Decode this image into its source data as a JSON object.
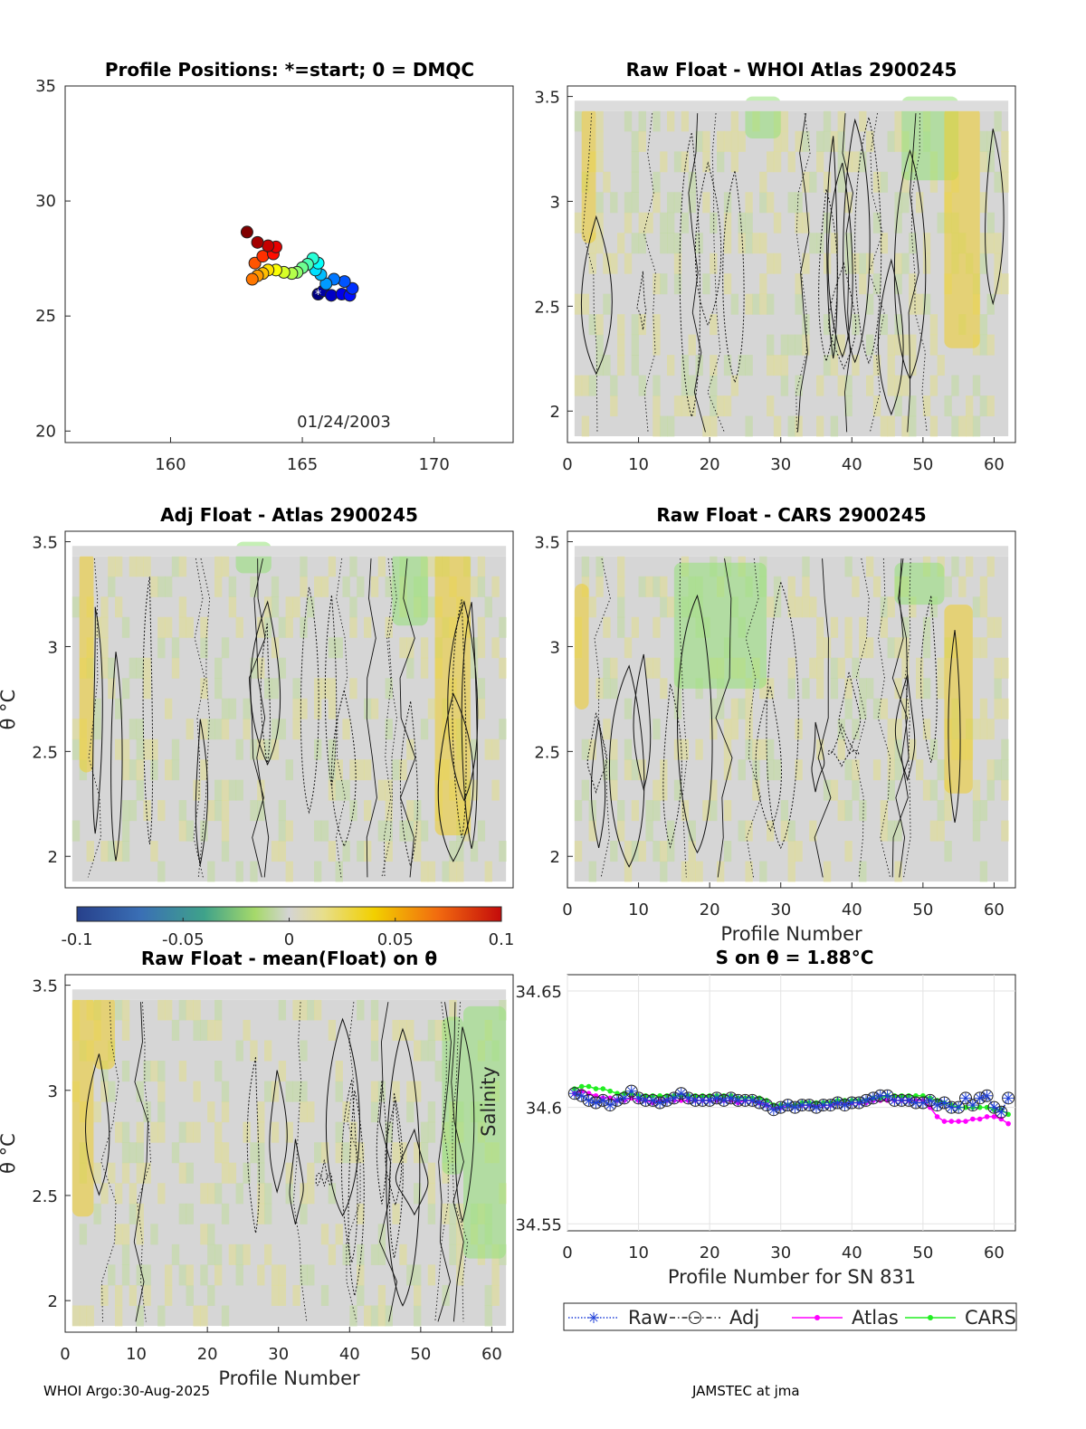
{
  "chart_data": [
    {
      "id": "positions",
      "type": "scatter",
      "title": "Profile Positions: *=start; 0 = DMQC",
      "xlim": [
        156,
        173
      ],
      "ylim": [
        19.5,
        35
      ],
      "xticks": [
        160,
        165,
        170
      ],
      "yticks": [
        20,
        25,
        30,
        35
      ],
      "annotation": "01/24/2003",
      "points": [
        {
          "lon": 165.6,
          "lat": 25.95
        },
        {
          "lon": 165.8,
          "lat": 26.1
        },
        {
          "lon": 166.1,
          "lat": 25.9
        },
        {
          "lon": 166.5,
          "lat": 25.95
        },
        {
          "lon": 166.8,
          "lat": 25.9
        },
        {
          "lon": 166.9,
          "lat": 26.2
        },
        {
          "lon": 166.6,
          "lat": 26.5
        },
        {
          "lon": 166.2,
          "lat": 26.6
        },
        {
          "lon": 165.9,
          "lat": 26.4
        },
        {
          "lon": 165.7,
          "lat": 26.8
        },
        {
          "lon": 165.5,
          "lat": 27.0
        },
        {
          "lon": 165.6,
          "lat": 27.3
        },
        {
          "lon": 165.4,
          "lat": 27.5
        },
        {
          "lon": 165.2,
          "lat": 27.25
        },
        {
          "lon": 165.0,
          "lat": 27.1
        },
        {
          "lon": 164.8,
          "lat": 26.9
        },
        {
          "lon": 164.6,
          "lat": 26.85
        },
        {
          "lon": 164.3,
          "lat": 26.9
        },
        {
          "lon": 164.0,
          "lat": 27.0
        },
        {
          "lon": 163.7,
          "lat": 27.0
        },
        {
          "lon": 163.5,
          "lat": 26.85
        },
        {
          "lon": 163.3,
          "lat": 26.75
        },
        {
          "lon": 163.1,
          "lat": 26.6
        },
        {
          "lon": 163.2,
          "lat": 27.3
        },
        {
          "lon": 163.5,
          "lat": 27.6
        },
        {
          "lon": 163.9,
          "lat": 27.7
        },
        {
          "lon": 164.0,
          "lat": 28.0
        },
        {
          "lon": 163.7,
          "lat": 28.05
        },
        {
          "lon": 163.3,
          "lat": 28.2
        },
        {
          "lon": 162.9,
          "lat": 28.65
        }
      ]
    },
    {
      "id": "raw-whoi",
      "type": "heatmap",
      "title": "Raw Float - WHOI Atlas  2900245",
      "xlim": [
        0,
        63
      ],
      "ylim": [
        1.85,
        3.55
      ],
      "xticks": [
        0,
        10,
        20,
        30,
        40,
        50,
        60
      ],
      "yticks": [
        2,
        2.5,
        3,
        3.5
      ],
      "xlabel": "",
      "ylabel": ""
    },
    {
      "id": "adj-atlas",
      "type": "heatmap",
      "title": "Adj Float - Atlas  2900245",
      "xlim": [
        0,
        63
      ],
      "ylim": [
        1.85,
        3.55
      ],
      "yticks": [
        2,
        2.5,
        3,
        3.5
      ],
      "ylabel": "θ °C"
    },
    {
      "id": "raw-cars",
      "type": "heatmap",
      "title": "Raw Float - CARS  2900245",
      "xlim": [
        0,
        63
      ],
      "ylim": [
        1.85,
        3.55
      ],
      "xticks": [
        0,
        10,
        20,
        30,
        40,
        50,
        60
      ],
      "yticks": [
        2,
        2.5,
        3,
        3.5
      ],
      "xlabel": "Profile Number"
    },
    {
      "id": "raw-mean",
      "type": "heatmap",
      "title": "Raw Float - mean(Float) on θ",
      "xlim": [
        0,
        63
      ],
      "ylim": [
        1.85,
        3.55
      ],
      "xticks": [
        0,
        10,
        20,
        30,
        40,
        50,
        60
      ],
      "yticks": [
        2,
        2.5,
        3,
        3.5
      ],
      "xlabel": "Profile Number",
      "ylabel": "θ °C",
      "annotation": "Salinity"
    },
    {
      "id": "colorbar",
      "type": "colorbar",
      "range": [
        -0.1,
        0.1
      ],
      "ticks": [
        -0.1,
        -0.05,
        0,
        0.05,
        0.1
      ],
      "tick_labels": [
        "-0.1",
        "-0.05",
        "0",
        "0.05",
        "0.1"
      ]
    },
    {
      "id": "s-on-theta",
      "type": "line",
      "title": "S on θ = 1.88°C",
      "xlim": [
        0,
        63
      ],
      "ylim": [
        34.547,
        34.657
      ],
      "xticks": [
        0,
        10,
        20,
        30,
        40,
        50,
        60
      ],
      "yticks": [
        34.55,
        34.6,
        34.65
      ],
      "ytick_labels": [
        "34.55",
        "34.6",
        "34.65"
      ],
      "xlabel": "Profile Number for SN 831",
      "x": [
        1,
        2,
        3,
        4,
        5,
        6,
        7,
        8,
        9,
        10,
        11,
        12,
        13,
        14,
        15,
        16,
        17,
        18,
        19,
        20,
        21,
        22,
        23,
        24,
        25,
        26,
        27,
        28,
        29,
        30,
        31,
        32,
        33,
        34,
        35,
        36,
        37,
        38,
        39,
        40,
        41,
        42,
        43,
        44,
        45,
        46,
        47,
        48,
        49,
        50,
        51,
        52,
        53,
        54,
        55,
        56,
        57,
        58,
        59,
        60,
        61,
        62
      ],
      "series": [
        {
          "name": "Raw",
          "color": "#1f3fd8",
          "style": "dotted",
          "marker": "asterisk",
          "values": [
            34.606,
            34.605,
            34.603,
            34.602,
            34.603,
            34.601,
            34.603,
            34.604,
            34.607,
            34.604,
            34.603,
            34.603,
            34.602,
            34.603,
            34.604,
            34.606,
            34.604,
            34.603,
            34.603,
            34.603,
            34.604,
            34.603,
            34.604,
            34.603,
            34.603,
            34.603,
            34.602,
            34.601,
            34.599,
            34.6,
            34.601,
            34.6,
            34.601,
            34.601,
            34.6,
            34.601,
            34.601,
            34.602,
            34.601,
            34.602,
            34.602,
            34.603,
            34.604,
            34.605,
            34.605,
            34.603,
            34.603,
            34.603,
            34.602,
            34.602,
            34.603,
            34.601,
            34.602,
            34.6,
            34.6,
            34.604,
            34.601,
            34.604,
            34.605,
            34.6,
            34.598,
            34.604
          ]
        },
        {
          "name": "Adj",
          "color": "#222222",
          "style": "dashdot",
          "marker": "circle",
          "values": [
            34.606,
            34.605,
            34.603,
            34.602,
            34.603,
            34.601,
            34.603,
            34.604,
            34.607,
            34.604,
            34.603,
            34.603,
            34.602,
            34.603,
            34.604,
            34.606,
            34.604,
            34.603,
            34.603,
            34.603,
            34.604,
            34.603,
            34.604,
            34.603,
            34.603,
            34.603,
            34.602,
            34.601,
            34.599,
            34.6,
            34.601,
            34.6,
            34.601,
            34.601,
            34.6,
            34.601,
            34.601,
            34.602,
            34.601,
            34.602,
            34.602,
            34.603,
            34.604,
            34.605,
            34.605,
            34.603,
            34.603,
            34.603,
            34.602,
            34.602,
            34.603,
            34.601,
            34.602,
            34.6,
            34.6,
            34.604,
            34.601,
            34.604,
            34.605,
            34.6,
            34.598,
            34.604
          ]
        },
        {
          "name": "Atlas",
          "color": "#ff00ff",
          "style": "solid",
          "marker": "dot",
          "values": [
            34.606,
            34.607,
            34.606,
            34.605,
            34.604,
            34.604,
            34.603,
            34.603,
            34.604,
            34.603,
            34.603,
            34.602,
            34.603,
            34.603,
            34.603,
            34.603,
            34.603,
            34.603,
            34.603,
            34.603,
            34.603,
            34.603,
            34.603,
            34.602,
            34.603,
            34.603,
            34.602,
            34.601,
            34.6,
            34.6,
            34.601,
            34.601,
            34.601,
            34.601,
            34.601,
            34.601,
            34.601,
            34.602,
            34.602,
            34.602,
            34.602,
            34.602,
            34.603,
            34.603,
            34.603,
            34.603,
            34.603,
            34.603,
            34.603,
            34.603,
            34.6,
            34.596,
            34.594,
            34.594,
            34.594,
            34.594,
            34.595,
            34.595,
            34.596,
            34.596,
            34.595,
            34.593
          ]
        },
        {
          "name": "CARS",
          "color": "#22ee22",
          "style": "solid",
          "marker": "dot",
          "values": [
            34.608,
            34.609,
            34.609,
            34.608,
            34.608,
            34.607,
            34.606,
            34.606,
            34.606,
            34.605,
            34.605,
            34.605,
            34.605,
            34.605,
            34.605,
            34.605,
            34.605,
            34.605,
            34.605,
            34.605,
            34.605,
            34.605,
            34.605,
            34.604,
            34.604,
            34.604,
            34.604,
            34.603,
            34.601,
            34.601,
            34.601,
            34.601,
            34.602,
            34.602,
            34.602,
            34.602,
            34.602,
            34.603,
            34.603,
            34.603,
            34.603,
            34.603,
            34.604,
            34.604,
            34.605,
            34.605,
            34.605,
            34.605,
            34.605,
            34.605,
            34.604,
            34.603,
            34.602,
            34.601,
            34.6,
            34.6,
            34.6,
            34.6,
            34.6,
            34.599,
            34.599,
            34.597
          ]
        }
      ],
      "legend": [
        "Raw",
        "Adj",
        "Atlas",
        "CARS"
      ]
    }
  ],
  "footer": {
    "left": "WHOI Argo:30-Aug-2025",
    "right": "JAMSTEC at jma"
  }
}
